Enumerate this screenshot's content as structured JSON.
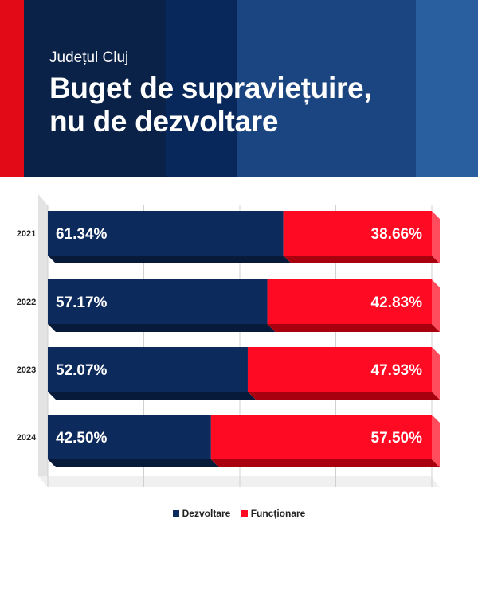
{
  "header": {
    "subtitle": "Județul Cluj",
    "title_line1": "Buget de supraviețuire,",
    "title_line2": "nu de dezvoltare"
  },
  "colors": {
    "dezvoltare": "#0d2a5c",
    "functionare": "#ff0a23",
    "header_stripes": [
      "#e30a17",
      "#0a2148",
      "#08275a",
      "#1b4580",
      "#2a5f9f"
    ]
  },
  "chart_data": {
    "type": "bar",
    "orientation": "horizontal",
    "stacked": true,
    "percent": true,
    "categories": [
      "2021",
      "2022",
      "2023",
      "2024"
    ],
    "series": [
      {
        "name": "Dezvoltare",
        "values": [
          61.34,
          57.17,
          52.07,
          42.5
        ],
        "labels": [
          "61.34%",
          "57.17%",
          "52.07%",
          "42.50%"
        ]
      },
      {
        "name": "Funcționare",
        "values": [
          38.66,
          42.83,
          47.93,
          57.5
        ],
        "labels": [
          "38.66%",
          "42.83%",
          "47.93%",
          "57.50%"
        ]
      }
    ],
    "xlim": [
      0,
      100
    ],
    "grid": true,
    "legend": "bottom-center"
  }
}
